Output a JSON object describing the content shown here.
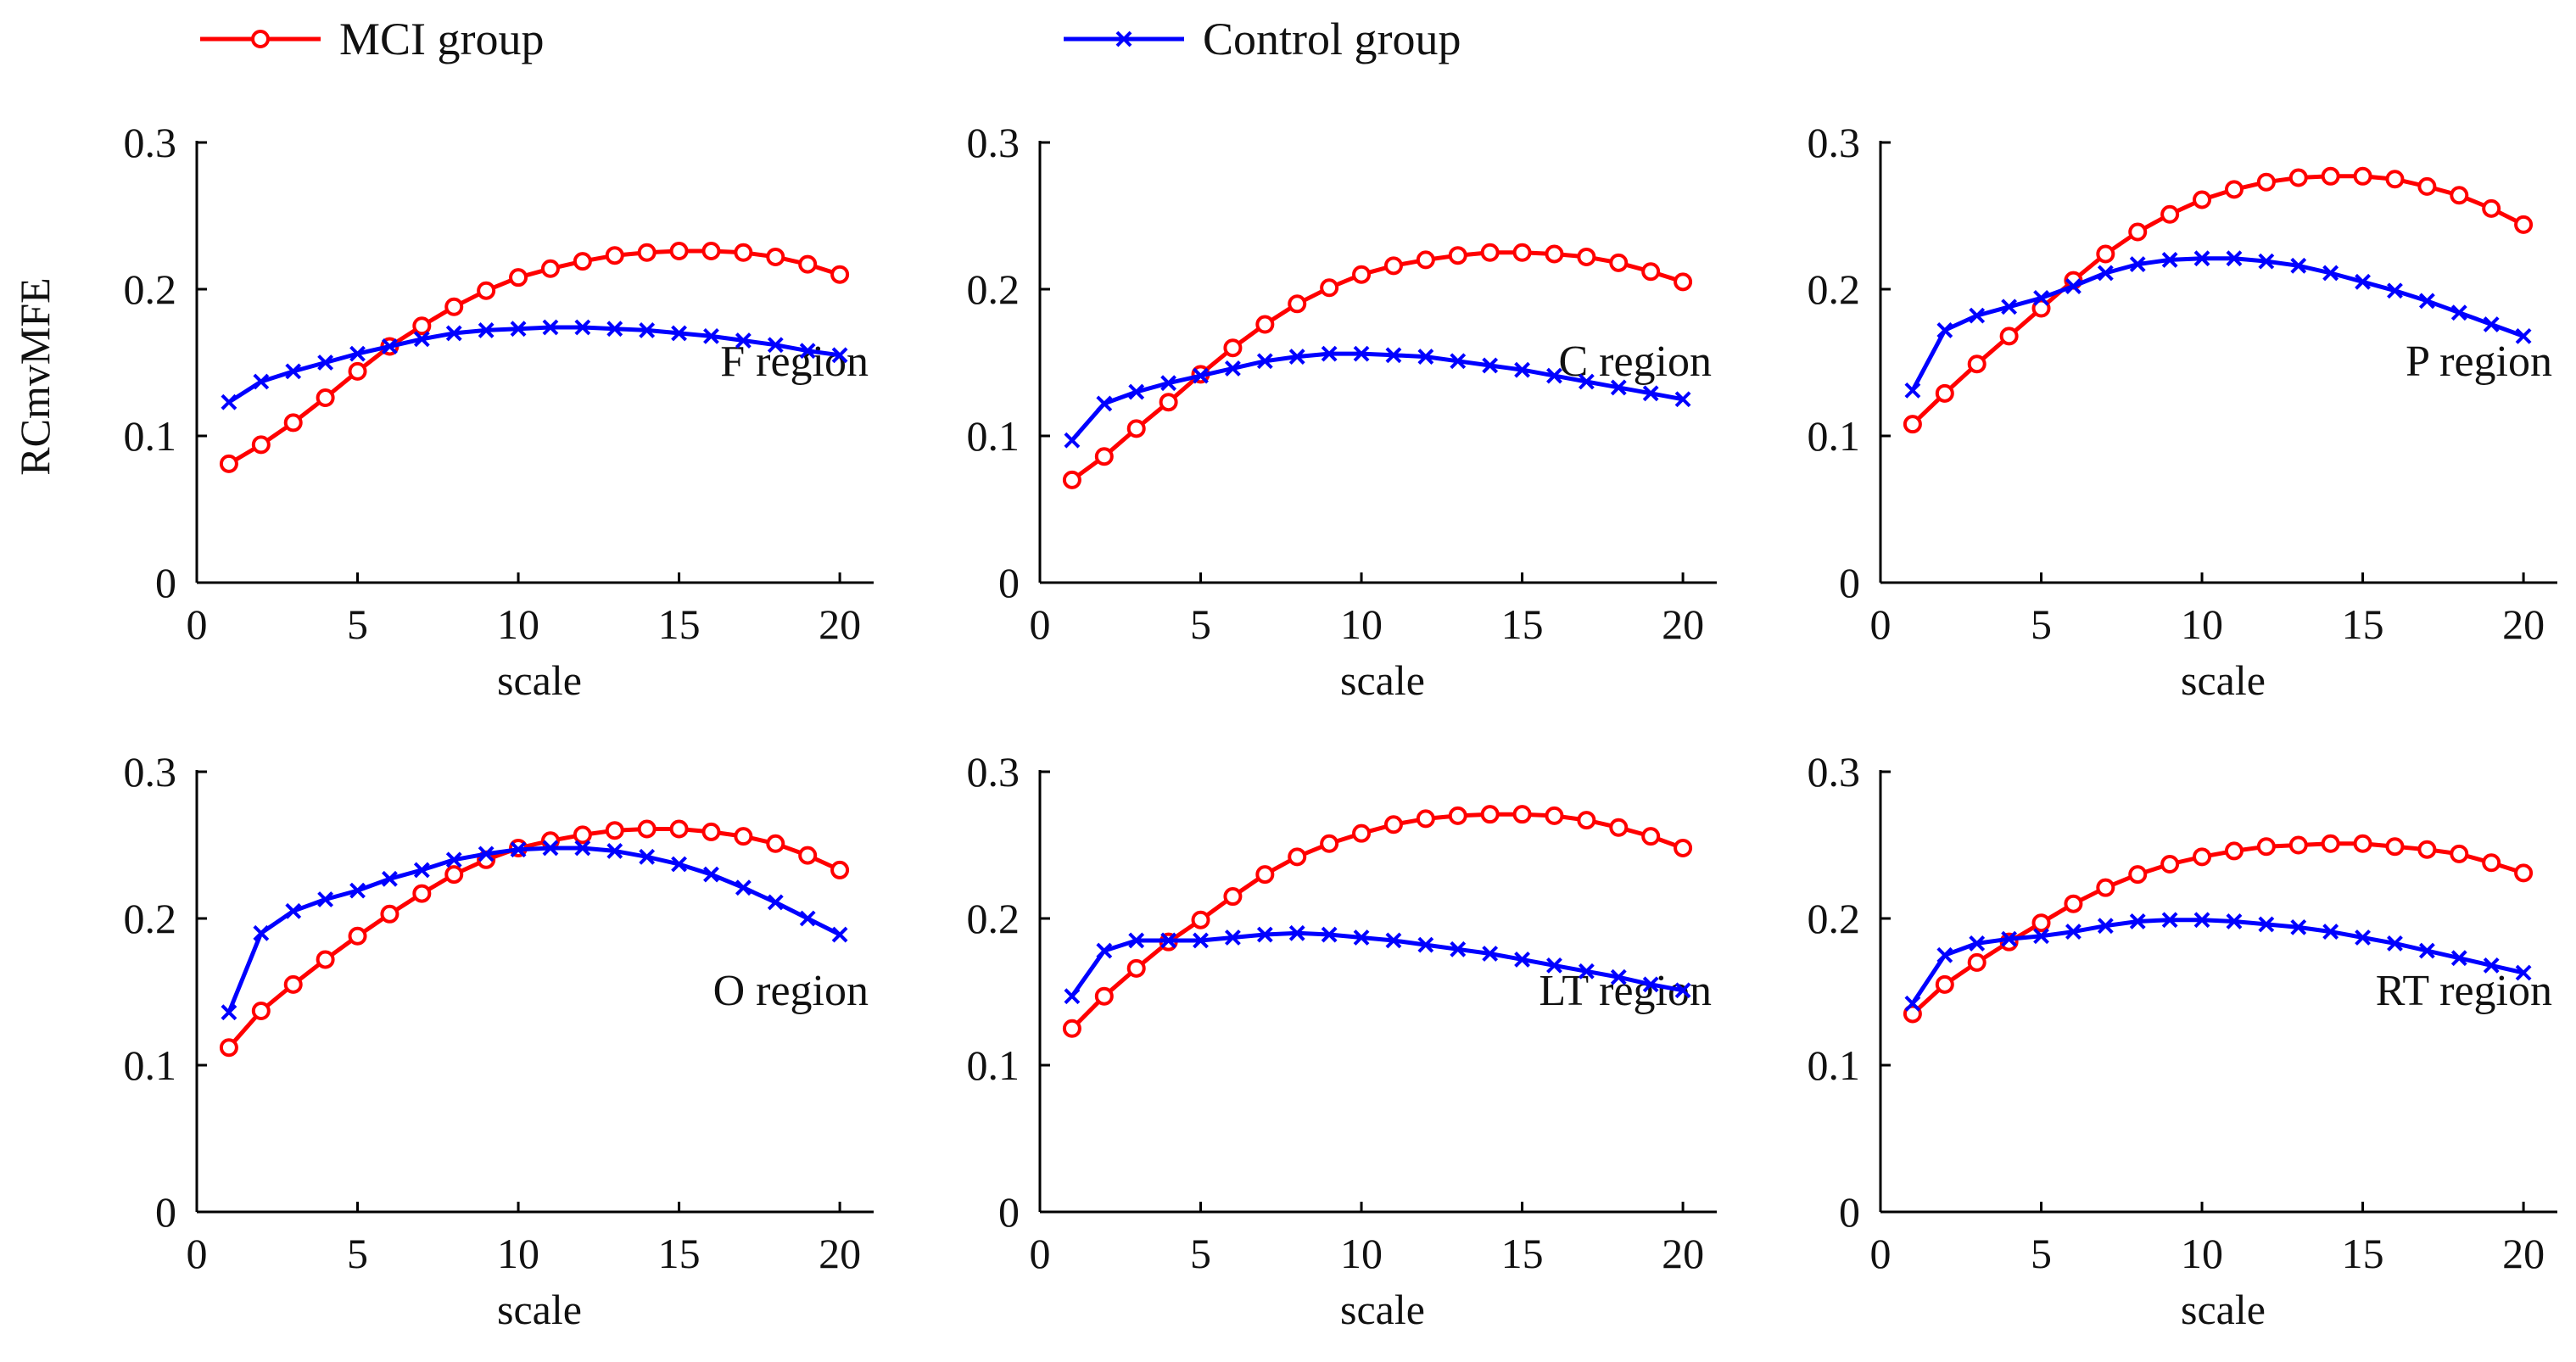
{
  "colors": {
    "mci": "#ff0000",
    "control": "#0000ff"
  },
  "legend": [
    {
      "label": "MCI group",
      "series": "mci",
      "marker": "circle-icon"
    },
    {
      "label": "Control group",
      "series": "control",
      "marker": "x-icon"
    }
  ],
  "chart_data": {
    "type": "line",
    "ylabel": "RCmvMFE",
    "xlabel": "scale",
    "xlim": [
      0,
      21
    ],
    "ylim": [
      0,
      0.3
    ],
    "xticks": [
      0,
      5,
      10,
      15,
      20
    ],
    "yticks": [
      "0",
      "0.1",
      "0.2",
      "0.3"
    ],
    "x": [
      1,
      2,
      3,
      4,
      5,
      6,
      7,
      8,
      9,
      10,
      11,
      12,
      13,
      14,
      15,
      16,
      17,
      18,
      19,
      20
    ],
    "panels": [
      {
        "title": "F region",
        "series": [
          {
            "name": "MCI group",
            "key": "mci",
            "values": [
              0.081,
              0.094,
              0.109,
              0.126,
              0.144,
              0.161,
              0.175,
              0.188,
              0.199,
              0.208,
              0.214,
              0.219,
              0.223,
              0.225,
              0.226,
              0.226,
              0.225,
              0.222,
              0.217,
              0.21
            ]
          },
          {
            "name": "Control group",
            "key": "control",
            "values": [
              0.123,
              0.137,
              0.144,
              0.15,
              0.156,
              0.161,
              0.166,
              0.17,
              0.172,
              0.173,
              0.174,
              0.174,
              0.173,
              0.172,
              0.17,
              0.168,
              0.165,
              0.162,
              0.158,
              0.155
            ]
          }
        ]
      },
      {
        "title": "C region",
        "series": [
          {
            "name": "MCI group",
            "key": "mci",
            "values": [
              0.07,
              0.086,
              0.105,
              0.123,
              0.142,
              0.16,
              0.176,
              0.19,
              0.201,
              0.21,
              0.216,
              0.22,
              0.223,
              0.225,
              0.225,
              0.224,
              0.222,
              0.218,
              0.212,
              0.205
            ]
          },
          {
            "name": "Control group",
            "key": "control",
            "values": [
              0.097,
              0.122,
              0.13,
              0.136,
              0.141,
              0.146,
              0.151,
              0.154,
              0.156,
              0.156,
              0.155,
              0.154,
              0.151,
              0.148,
              0.145,
              0.141,
              0.137,
              0.133,
              0.129,
              0.125
            ]
          }
        ]
      },
      {
        "title": "P region",
        "series": [
          {
            "name": "MCI group",
            "key": "mci",
            "values": [
              0.108,
              0.129,
              0.149,
              0.168,
              0.187,
              0.206,
              0.224,
              0.239,
              0.251,
              0.261,
              0.268,
              0.273,
              0.276,
              0.277,
              0.277,
              0.275,
              0.27,
              0.264,
              0.255,
              0.244
            ]
          },
          {
            "name": "Control group",
            "key": "control",
            "values": [
              0.131,
              0.172,
              0.182,
              0.188,
              0.194,
              0.202,
              0.211,
              0.217,
              0.22,
              0.221,
              0.221,
              0.219,
              0.216,
              0.211,
              0.205,
              0.199,
              0.192,
              0.184,
              0.176,
              0.168
            ]
          }
        ]
      },
      {
        "title": "O region",
        "series": [
          {
            "name": "MCI group",
            "key": "mci",
            "values": [
              0.112,
              0.137,
              0.155,
              0.172,
              0.188,
              0.203,
              0.217,
              0.23,
              0.24,
              0.248,
              0.253,
              0.257,
              0.26,
              0.261,
              0.261,
              0.259,
              0.256,
              0.251,
              0.243,
              0.233
            ]
          },
          {
            "name": "Control group",
            "key": "control",
            "values": [
              0.136,
              0.19,
              0.205,
              0.213,
              0.219,
              0.227,
              0.233,
              0.24,
              0.244,
              0.247,
              0.248,
              0.248,
              0.246,
              0.242,
              0.237,
              0.23,
              0.221,
              0.211,
              0.2,
              0.189
            ]
          }
        ]
      },
      {
        "title": "LT region",
        "series": [
          {
            "name": "MCI group",
            "key": "mci",
            "values": [
              0.125,
              0.147,
              0.166,
              0.184,
              0.199,
              0.215,
              0.23,
              0.242,
              0.251,
              0.258,
              0.264,
              0.268,
              0.27,
              0.271,
              0.271,
              0.27,
              0.267,
              0.262,
              0.256,
              0.248
            ]
          },
          {
            "name": "Control group",
            "key": "control",
            "values": [
              0.147,
              0.178,
              0.185,
              0.185,
              0.185,
              0.187,
              0.189,
              0.19,
              0.189,
              0.187,
              0.185,
              0.182,
              0.179,
              0.176,
              0.172,
              0.168,
              0.164,
              0.16,
              0.155,
              0.151
            ]
          }
        ]
      },
      {
        "title": "RT region",
        "series": [
          {
            "name": "MCI group",
            "key": "mci",
            "values": [
              0.135,
              0.155,
              0.17,
              0.184,
              0.197,
              0.21,
              0.221,
              0.23,
              0.237,
              0.242,
              0.246,
              0.249,
              0.25,
              0.251,
              0.251,
              0.249,
              0.247,
              0.244,
              0.238,
              0.231
            ]
          },
          {
            "name": "Control group",
            "key": "control",
            "values": [
              0.142,
              0.175,
              0.183,
              0.186,
              0.188,
              0.191,
              0.195,
              0.198,
              0.199,
              0.199,
              0.198,
              0.196,
              0.194,
              0.191,
              0.187,
              0.183,
              0.178,
              0.173,
              0.168,
              0.163
            ]
          }
        ]
      }
    ]
  }
}
